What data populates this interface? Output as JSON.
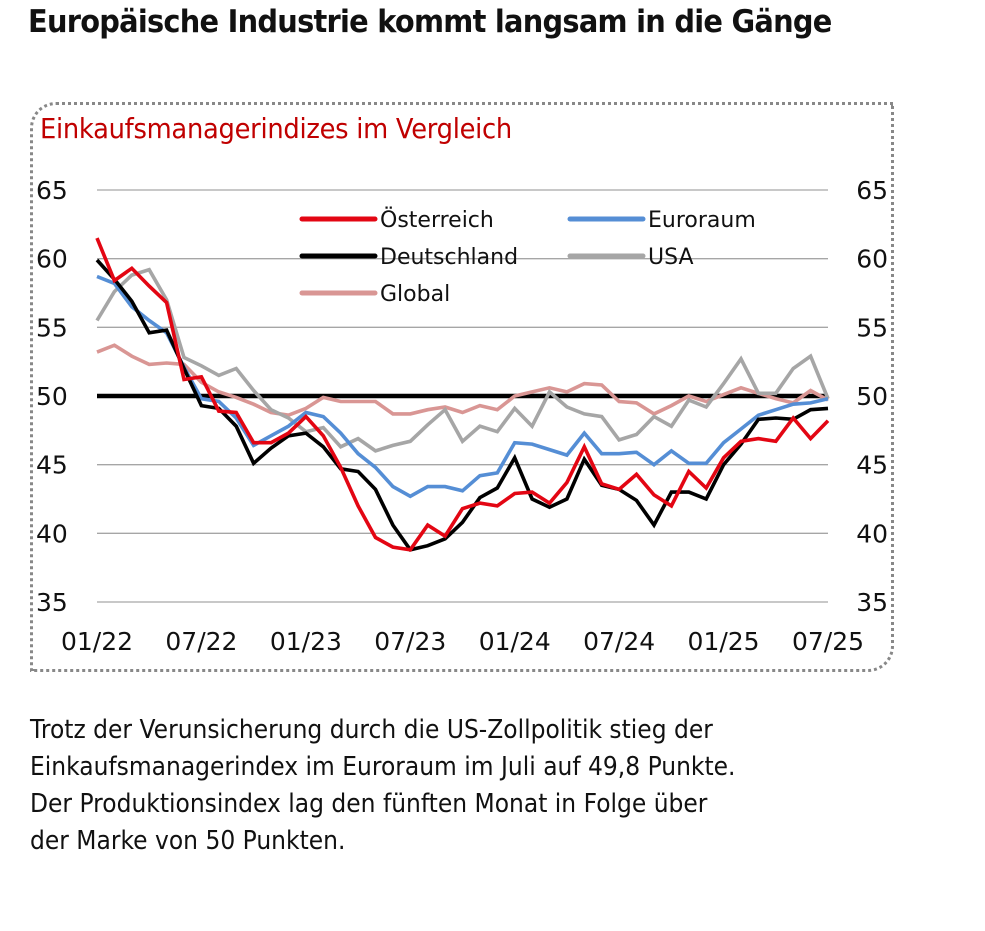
{
  "headline": "Europäische Industrie kommt langsam in die Gänge",
  "caption_lines": [
    "Trotz der Verunsicherung durch die US-Zollpolitik stieg der",
    "Einkaufsmanagerindex im Euroraum im Juli auf 49,8 Punkte.",
    "Der Produktionsindex lag den fünften Monat in Folge über",
    "der Marke von 50 Punkten."
  ],
  "chart_data": {
    "type": "line",
    "title": "Einkaufsmanagerindizes im Vergleich",
    "xlabel": "",
    "ylabel": "",
    "ylim": [
      35,
      65
    ],
    "yticks": [
      35,
      40,
      45,
      50,
      55,
      60,
      65
    ],
    "ytick_labels": [
      "35",
      "40",
      "45",
      "50",
      "55",
      "60",
      "65"
    ],
    "y2_tick_labels": [
      "35",
      "40",
      "45",
      "50",
      "55",
      "60",
      "65"
    ],
    "grid": true,
    "reference_line": 50,
    "legend_position": "top",
    "x_tick_labels": [
      "01/22",
      "07/22",
      "01/23",
      "07/23",
      "01/24",
      "07/24",
      "01/25",
      "07/25"
    ],
    "x_tick_index": [
      0,
      6,
      12,
      18,
      24,
      30,
      36,
      42
    ],
    "x_count": 43,
    "series": [
      {
        "name": "Österreich",
        "color": "#e30613",
        "values": [
          61.5,
          58.4,
          59.3,
          58.0,
          56.8,
          51.2,
          51.4,
          48.9,
          48.8,
          46.6,
          46.6,
          47.3,
          48.5,
          47.1,
          44.8,
          42.0,
          39.7,
          39.0,
          38.8,
          40.6,
          39.8,
          41.8,
          42.2,
          42.0,
          42.9,
          43.0,
          42.2,
          43.7,
          46.3,
          43.6,
          43.2,
          44.3,
          42.8,
          42.0,
          44.5,
          43.3,
          45.5,
          46.7,
          46.9,
          46.7,
          48.4,
          46.9,
          48.2
        ]
      },
      {
        "name": "Deutschland",
        "color": "#000000",
        "values": [
          59.9,
          58.5,
          56.9,
          54.6,
          54.8,
          52.0,
          49.3,
          49.1,
          47.8,
          45.1,
          46.2,
          47.1,
          47.3,
          46.3,
          44.7,
          44.5,
          43.2,
          40.6,
          38.8,
          39.1,
          39.6,
          40.8,
          42.6,
          43.3,
          45.5,
          42.5,
          41.9,
          42.5,
          45.4,
          43.5,
          43.2,
          42.4,
          40.6,
          43.0,
          43.0,
          42.5,
          45.0,
          46.5,
          48.3,
          48.4,
          48.3,
          49.0,
          49.1
        ]
      },
      {
        "name": "Global",
        "color": "#d99694",
        "values": [
          53.2,
          53.7,
          52.9,
          52.3,
          52.4,
          52.3,
          51.0,
          50.3,
          49.9,
          49.4,
          48.8,
          48.6,
          49.1,
          49.9,
          49.6,
          49.6,
          49.6,
          48.7,
          48.7,
          49.0,
          49.2,
          48.8,
          49.3,
          49.0,
          50.0,
          50.3,
          50.6,
          50.3,
          50.9,
          50.8,
          49.6,
          49.5,
          48.7,
          49.3,
          50.0,
          49.6,
          50.1,
          50.6,
          50.2,
          49.8,
          49.5,
          50.4,
          49.7
        ]
      },
      {
        "name": "Euroraum",
        "color": "#558ed5",
        "values": [
          58.7,
          58.2,
          56.5,
          55.5,
          54.6,
          52.1,
          49.8,
          49.6,
          48.4,
          46.4,
          47.1,
          47.8,
          48.8,
          48.5,
          47.3,
          45.8,
          44.8,
          43.4,
          42.7,
          43.4,
          43.4,
          43.1,
          44.2,
          44.4,
          46.6,
          46.5,
          46.1,
          45.7,
          47.3,
          45.8,
          45.8,
          45.9,
          45.0,
          46.0,
          45.1,
          45.1,
          46.6,
          47.6,
          48.6,
          49.0,
          49.4,
          49.5,
          49.8
        ]
      },
      {
        "name": "USA",
        "color": "#a6a6a6",
        "values": [
          55.5,
          57.6,
          58.8,
          59.2,
          57.0,
          52.8,
          52.2,
          51.5,
          52.0,
          50.4,
          49.0,
          48.4,
          47.4,
          47.7,
          46.3,
          46.9,
          46.0,
          46.4,
          46.7,
          47.9,
          49.0,
          46.7,
          47.8,
          47.4,
          49.1,
          47.8,
          50.3,
          49.2,
          48.7,
          48.5,
          46.8,
          47.2,
          48.5,
          47.8,
          49.7,
          49.2,
          50.9,
          52.7,
          50.2,
          50.2,
          52.0,
          52.9,
          49.8
        ]
      }
    ]
  }
}
